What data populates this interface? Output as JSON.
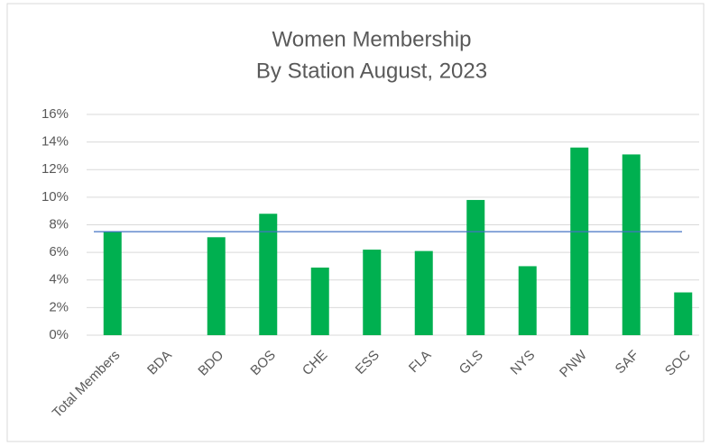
{
  "chart_data": {
    "type": "bar",
    "title": [
      "Women Membership",
      "By Station August, 2023"
    ],
    "categories": [
      "Total Members",
      "BDA",
      "BDO",
      "BOS",
      "CHE",
      "ESS",
      "FLA",
      "GLS",
      "NYS",
      "PNW",
      "SAF",
      "SOC"
    ],
    "values": [
      7.5,
      0,
      7.1,
      8.8,
      4.9,
      6.2,
      6.1,
      9.8,
      5.0,
      13.6,
      13.1,
      3.1
    ],
    "color": "#00b050",
    "reference_line": 7.5,
    "reference_color": "#4472c4",
    "ylim": [
      0,
      16
    ],
    "yticks": [
      {
        "value": 0,
        "label": "0%"
      },
      {
        "value": 2,
        "label": "2%"
      },
      {
        "value": 4,
        "label": "4%"
      },
      {
        "value": 6,
        "label": "6%"
      },
      {
        "value": 8,
        "label": "8%"
      },
      {
        "value": 10,
        "label": "10%"
      },
      {
        "value": 12,
        "label": "12%"
      },
      {
        "value": 14,
        "label": "14%"
      },
      {
        "value": 16,
        "label": "16%"
      }
    ],
    "grid": true
  }
}
